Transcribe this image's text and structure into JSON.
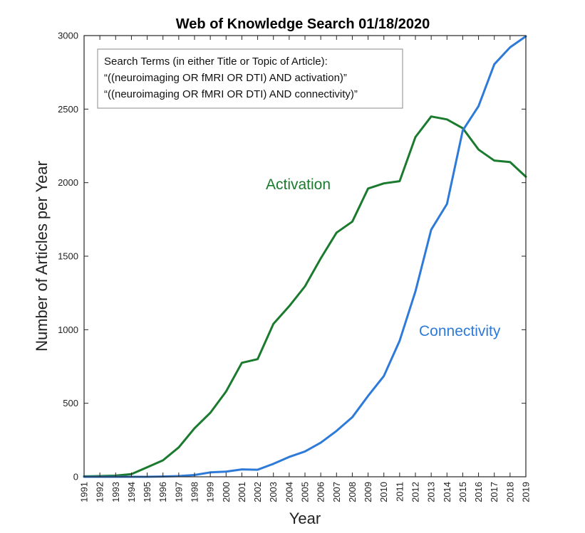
{
  "chart_data": {
    "type": "line",
    "title": "Web of Knowledge Search 01/18/2020",
    "xlabel": "Year",
    "ylabel": "Number of Articles per Year",
    "xlim": [
      1991,
      2019
    ],
    "ylim": [
      0,
      3000
    ],
    "yticks": [
      0,
      500,
      1000,
      1500,
      2000,
      2500,
      3000
    ],
    "x": [
      1991,
      1992,
      1993,
      1994,
      1995,
      1996,
      1997,
      1998,
      1999,
      2000,
      2001,
      2002,
      2003,
      2004,
      2005,
      2006,
      2007,
      2008,
      2009,
      2010,
      2011,
      2012,
      2013,
      2014,
      2015,
      2016,
      2017,
      2018,
      2019
    ],
    "x_tick_labels": [
      "1991",
      "1992",
      "1993",
      "1994",
      "1995",
      "1996",
      "1997",
      "1998",
      "1999",
      "2000",
      "2001",
      "2002",
      "2003",
      "2004",
      "2005",
      "2006",
      "2007",
      "2008",
      "2009",
      "2010",
      "2011",
      "2012",
      "2013",
      "2014",
      "2015",
      "2016",
      "2017",
      "2018",
      "2019"
    ],
    "series": [
      {
        "name": "Activation",
        "color": "#1a7a2e",
        "values": [
          3,
          5,
          8,
          18,
          65,
          112,
          200,
          330,
          435,
          580,
          775,
          800,
          1040,
          1160,
          1295,
          1485,
          1660,
          1735,
          1960,
          1995,
          2010,
          2310,
          2450,
          2430,
          2370,
          2225,
          2150,
          2140,
          2040
        ]
      },
      {
        "name": "Connectivity",
        "color": "#2e7ad8",
        "values": [
          0,
          0,
          0,
          0,
          0,
          2,
          5,
          12,
          30,
          35,
          50,
          48,
          88,
          135,
          172,
          232,
          312,
          405,
          550,
          685,
          925,
          1260,
          1680,
          1855,
          2355,
          2520,
          2805,
          2920,
          2995
        ]
      }
    ],
    "annotation": {
      "lines": [
        "Search Terms (in either Title  or Topic of Article):",
        "“((neuroimaging OR fMRI OR DTI) AND activation)”",
        "“((neuroimaging OR fMRI OR DTI) AND connectivity)”"
      ]
    },
    "grid": false
  }
}
